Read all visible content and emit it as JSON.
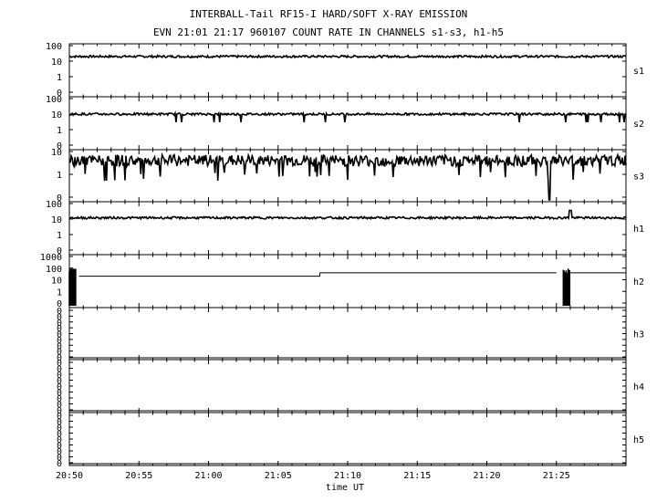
{
  "header": {
    "title": "INTERBALL-Tail RF15-I HARD/SOFT X-RAY EMISSION",
    "subtitle": "EVN 21:01 21:17 960107  COUNT RATE IN CHANNELS s1-s3, h1-h5"
  },
  "chart_data": {
    "type": "line",
    "xlabel": "time UT",
    "x_range_minutes_after_2050": [
      0,
      40
    ],
    "x_ticks": [
      "20:50",
      "20:55",
      "21:00",
      "21:05",
      "21:10",
      "21:15",
      "21:20",
      "21:25"
    ],
    "y_scale": "log",
    "panels": [
      {
        "name": "s1",
        "y_ticks": [
          "100",
          "10",
          "1",
          "0"
        ],
        "typical_count_rate": 20,
        "noise": "moderate"
      },
      {
        "name": "s2",
        "y_ticks": [
          "100",
          "10",
          "1",
          "0"
        ],
        "typical_count_rate": 10,
        "noise": "moderate",
        "dropouts_to_about": 3
      },
      {
        "name": "s3",
        "y_ticks": [
          "10",
          "1",
          "0"
        ],
        "typical_count_rate": 4,
        "noise": "high",
        "dropout_to_zero_at": "21:24.5"
      },
      {
        "name": "h1",
        "y_ticks": [
          "100",
          "10",
          "1",
          "0"
        ],
        "typical_count_rate": 12,
        "noise": "moderate",
        "spike_at": "21:26"
      },
      {
        "name": "h2",
        "y_ticks": [
          "1000",
          "100",
          "10",
          "1",
          "0"
        ],
        "step_levels": [
          {
            "from": "20:50.7",
            "to": "21:08",
            "count_rate": 20
          },
          {
            "from": "21:08",
            "to": "21:25",
            "count_rate": 40
          },
          {
            "from": "21:26",
            "to": "21:30",
            "count_rate": 40
          }
        ],
        "bursts_at": [
          "20:50",
          "21:25.5"
        ]
      },
      {
        "name": "h3",
        "y_ticks": [
          "0",
          "0",
          "0",
          "0",
          "0",
          "0",
          "0",
          "0",
          "0"
        ],
        "values": "all zero"
      },
      {
        "name": "h4",
        "y_ticks": [
          "0",
          "0",
          "0",
          "0",
          "0",
          "0",
          "0",
          "0",
          "0"
        ],
        "values": "all zero"
      },
      {
        "name": "h5",
        "y_ticks": [
          "0",
          "0",
          "0",
          "0",
          "0",
          "0",
          "0",
          "0",
          "0"
        ],
        "values": "all zero"
      }
    ],
    "grid": false,
    "colors": {
      "line": "#000000",
      "background": "#ffffff"
    }
  }
}
